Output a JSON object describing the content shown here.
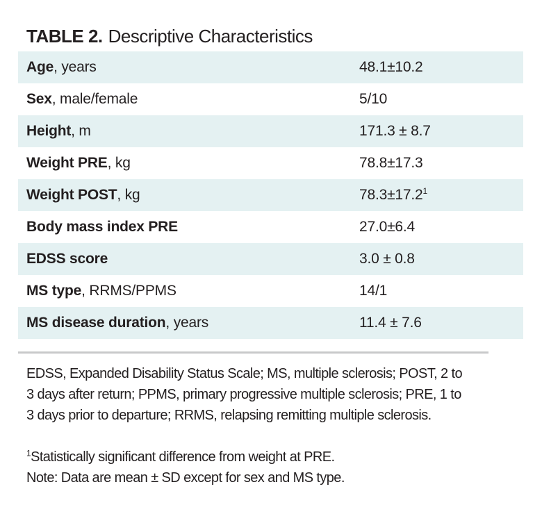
{
  "title": {
    "prefix": "TABLE 2.",
    "text": "Descriptive Characteristics"
  },
  "table": {
    "rows": [
      {
        "label_bold": "Age",
        "label_rest": ", years",
        "value": "48.1±10.2",
        "sup": ""
      },
      {
        "label_bold": "Sex",
        "label_rest": ", male/female",
        "value": "5/10",
        "sup": ""
      },
      {
        "label_bold": "Height",
        "label_rest": ", m",
        "value": "171.3 ± 8.7",
        "sup": ""
      },
      {
        "label_bold": "Weight PRE",
        "label_rest": ", kg",
        "value": "78.8±17.3",
        "sup": ""
      },
      {
        "label_bold": "Weight POST",
        "label_rest": ", kg",
        "value": "78.3±17.2",
        "sup": "1"
      },
      {
        "label_bold": "Body mass index PRE",
        "label_rest": "",
        "value": "27.0±6.4",
        "sup": ""
      },
      {
        "label_bold": "EDSS score",
        "label_rest": "",
        "value": "3.0 ± 0.8",
        "sup": ""
      },
      {
        "label_bold": "MS type",
        "label_rest": ", RRMS/PPMS",
        "value": "14/1",
        "sup": ""
      },
      {
        "label_bold": "MS disease duration",
        "label_rest": ", years",
        "value": "11.4 ± 7.6",
        "sup": ""
      }
    ]
  },
  "footnotes": {
    "abbreviations_lines": [
      "EDSS, Expanded Disability Status Scale; MS, multiple sclerosis; POST, 2 to",
      "3 days after return; PPMS, primary progressive multiple sclerosis; PRE, 1 to",
      "3 days prior to departure; RRMS, relapsing remitting multiple sclerosis."
    ],
    "significance_sup": "1",
    "significance_text": "Statistically significant difference from weight at PRE.",
    "note_text": "Note: Data are mean ± SD except for sex and MS type."
  },
  "colors": {
    "row_highlight": "#e4f1f2",
    "text": "#231f20",
    "divider": "#c8c9ca"
  }
}
